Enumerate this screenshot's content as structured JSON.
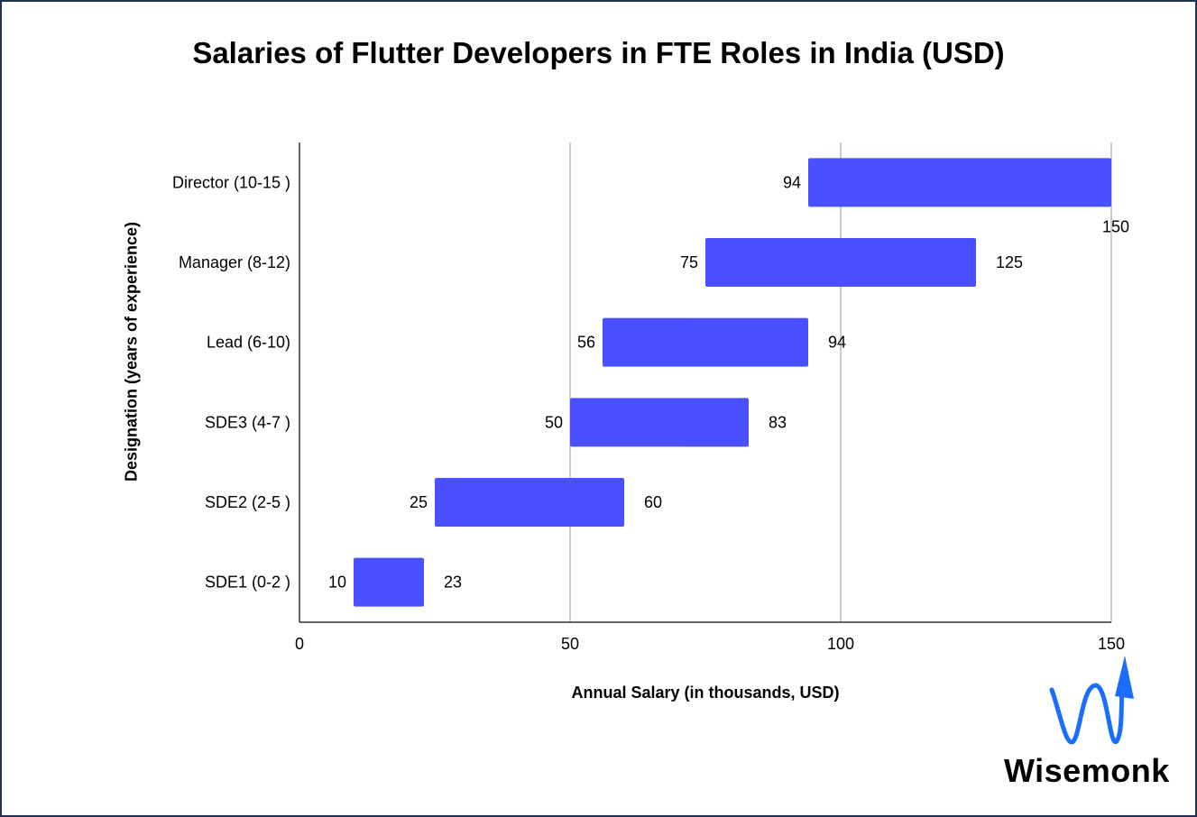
{
  "chart_data": {
    "type": "bar",
    "orientation": "horizontal",
    "style": "floating-range",
    "title": "Salaries of Flutter Developers in FTE Roles in India (USD)",
    "xlabel": "Annual Salary (in thousands, USD)",
    "ylabel": "Designation (years of experience)",
    "xlim": [
      0,
      150
    ],
    "xticks": [
      0,
      50,
      100,
      150
    ],
    "grid": true,
    "legend": "none",
    "bar_color": "#4a4fff",
    "categories": [
      "Director (10-15 )",
      "Manager (8-12)",
      "Lead (6-10)",
      "SDE3 (4-7 )",
      "SDE2 (2-5 )",
      "SDE1 (0-2 )"
    ],
    "series": [
      {
        "values_min": [
          94,
          75,
          56,
          50,
          25,
          10
        ],
        "values_max": [
          150,
          125,
          94,
          83,
          60,
          23
        ]
      }
    ]
  },
  "logo": {
    "text": "Wisemonk",
    "color": "#1a6dff"
  }
}
